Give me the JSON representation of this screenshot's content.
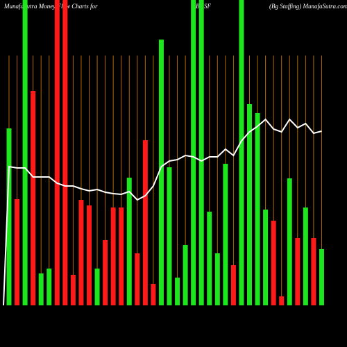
{
  "chart_data": {
    "type": "bar",
    "title": "MunafaSutra  Money Flow  Charts for",
    "symbol": "BGSF",
    "subtitle": "(Bg Staffing) MunafaSutra.com",
    "categories": [
      null,
      null,
      null,
      null,
      null,
      null,
      null,
      null,
      null,
      null,
      null,
      null,
      null,
      null,
      null,
      null,
      null,
      null,
      null,
      null,
      null,
      null,
      null,
      null,
      null,
      null,
      null,
      null,
      null,
      null,
      null,
      null,
      null,
      null,
      null,
      null,
      null,
      null,
      null,
      null
    ],
    "values": [
      255,
      153,
      440,
      309,
      46,
      53,
      440,
      440,
      44,
      152,
      144,
      53,
      94,
      141,
      141,
      184,
      75,
      238,
      31,
      383,
      199,
      40,
      87,
      440,
      440,
      135,
      75,
      204,
      58,
      440,
      290,
      277,
      138,
      122,
      13,
      183,
      97,
      141,
      97,
      81
    ],
    "colors": [
      "#1ee61e",
      "#ff1a1a",
      "#1ee61e",
      "#ff1a1a",
      "#1ee61e",
      "#1ee61e",
      "#ff1a1a",
      "#ff1a1a",
      "#ff1a1a",
      "#ff1a1a",
      "#ff1a1a",
      "#1ee61e",
      "#ff1a1a",
      "#ff1a1a",
      "#ff1a1a",
      "#1ee61e",
      "#ff1a1a",
      "#ff1a1a",
      "#ff1a1a",
      "#1ee61e",
      "#1ee61e",
      "#1ee61e",
      "#1ee61e",
      "#1ee61e",
      "#1ee61e",
      "#1ee61e",
      "#1ee61e",
      "#1ee61e",
      "#ff1a1a",
      "#1ee61e",
      "#1ee61e",
      "#1ee61e",
      "#1ee61e",
      "#ff1a1a",
      "#ff1a1a",
      "#1ee61e",
      "#ff1a1a",
      "#1ee61e",
      "#ff1a1a",
      "#1ee61e"
    ],
    "line": {
      "color": "#ffffff",
      "values": [
        200,
        198,
        198,
        185,
        185,
        185,
        176,
        172,
        172,
        168,
        165,
        167,
        163,
        161,
        160,
        164,
        152,
        158,
        172,
        200,
        208,
        210,
        216,
        214,
        208,
        214,
        214,
        225,
        216,
        237,
        250,
        258,
        268,
        254,
        250,
        268,
        256,
        262,
        248,
        251
      ]
    },
    "ylim": [
      0,
      440
    ],
    "grid_color": "#b06a00"
  }
}
